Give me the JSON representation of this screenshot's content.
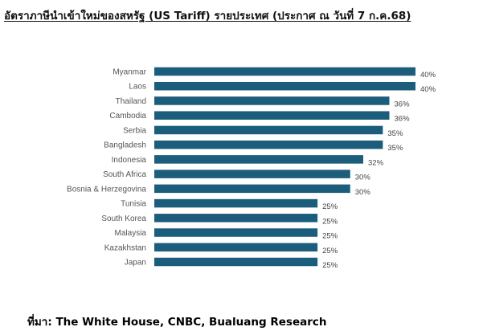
{
  "title": "อัตราภาษีนำเข้าใหม่ของสหรัฐ (US Tariff) รายประเทศ (ประกาศ ณ วันที่ 7 ก.ค.68)",
  "source": "ที่มา: The White House, CNBC, Bualuang Research",
  "colors": {
    "bar": "#1b5d7a"
  },
  "chart_data": {
    "type": "bar",
    "orientation": "horizontal",
    "title": "อัตราภาษีนำเข้าใหม่ของสหรัฐ (US Tariff) รายประเทศ (ประกาศ ณ วันที่ 7 ก.ค.68)",
    "categories": [
      "Myanmar",
      "Laos",
      "Thailand",
      "Cambodia",
      "Serbia",
      "Bangladesh",
      "Indonesia",
      "South Africa",
      "Bosnia & Herzegovina",
      "Tunisia",
      "South Korea",
      "Malaysia",
      "Kazakhstan",
      "Japan"
    ],
    "values": [
      40,
      40,
      36,
      36,
      35,
      35,
      32,
      30,
      30,
      25,
      25,
      25,
      25,
      25
    ],
    "value_labels": [
      "40%",
      "40%",
      "36%",
      "36%",
      "35%",
      "35%",
      "32%",
      "30%",
      "30%",
      "25%",
      "25%",
      "25%",
      "25%",
      "25%"
    ],
    "unit": "%",
    "xlim": [
      0,
      40
    ],
    "grid": false,
    "legend": "none"
  }
}
